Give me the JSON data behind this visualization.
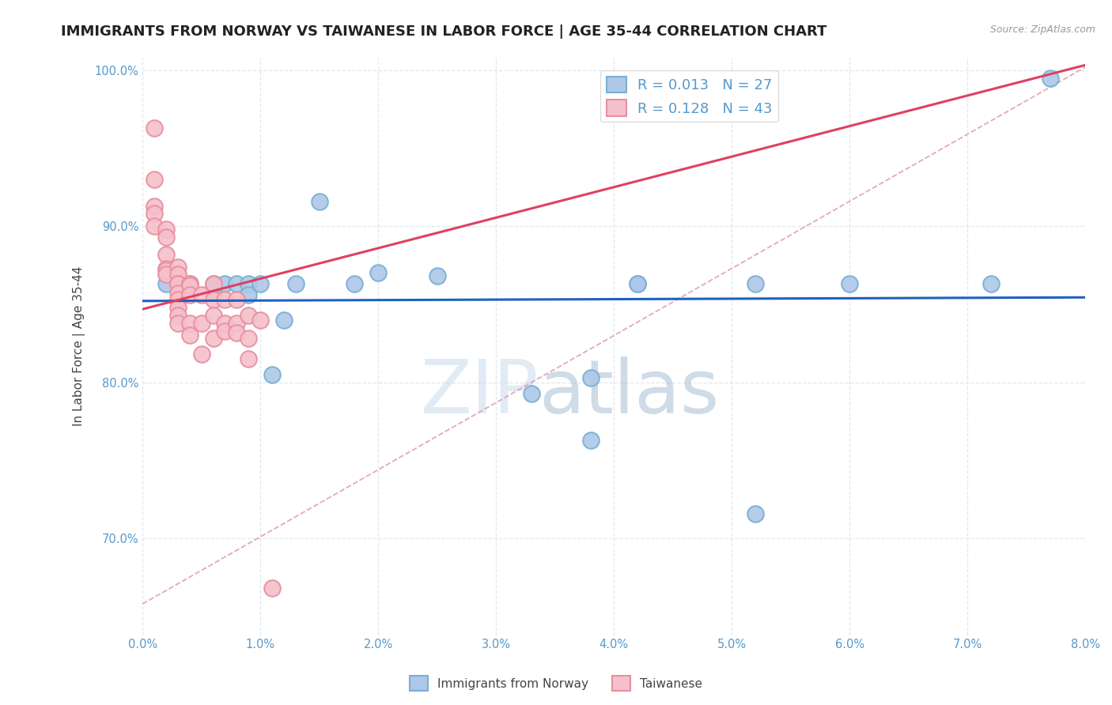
{
  "title": "IMMIGRANTS FROM NORWAY VS TAIWANESE IN LABOR FORCE | AGE 35-44 CORRELATION CHART",
  "source": "Source: ZipAtlas.com",
  "xlabel_norway": "Immigrants from Norway",
  "xlabel_taiwanese": "Taiwanese",
  "ylabel": "In Labor Force | Age 35-44",
  "xlim": [
    0.0,
    0.08
  ],
  "ylim": [
    0.638,
    1.008
  ],
  "xticks": [
    0.0,
    0.01,
    0.02,
    0.03,
    0.04,
    0.05,
    0.06,
    0.07,
    0.08
  ],
  "xtick_labels": [
    "0.0%",
    "1.0%",
    "2.0%",
    "3.0%",
    "4.0%",
    "5.0%",
    "6.0%",
    "7.0%",
    "8.0%"
  ],
  "yticks": [
    0.7,
    0.8,
    0.9,
    1.0
  ],
  "ytick_labels": [
    "70.0%",
    "80.0%",
    "90.0%",
    "100.0%"
  ],
  "norway_R": 0.013,
  "norway_N": 27,
  "taiwanese_R": 0.128,
  "taiwanese_N": 43,
  "norway_color": "#7bafd4",
  "norwegian_fill": "#adc8e8",
  "taiwanese_color": "#e88fa0",
  "taiwanese_fill": "#f5c0ca",
  "trend_blue_color": "#2060c0",
  "trend_pink_color": "#e04060",
  "dashed_line_color": "#e0a0b0",
  "norway_points_x": [
    0.002,
    0.004,
    0.006,
    0.006,
    0.006,
    0.007,
    0.008,
    0.009,
    0.009,
    0.01,
    0.011,
    0.012,
    0.013,
    0.015,
    0.018,
    0.02,
    0.025,
    0.033,
    0.038,
    0.038,
    0.042,
    0.042,
    0.052,
    0.052,
    0.06,
    0.072,
    0.077
  ],
  "norway_points_y": [
    0.863,
    0.863,
    0.863,
    0.862,
    0.858,
    0.863,
    0.863,
    0.863,
    0.856,
    0.863,
    0.805,
    0.84,
    0.863,
    0.916,
    0.863,
    0.87,
    0.868,
    0.793,
    0.803,
    0.763,
    0.863,
    0.863,
    0.716,
    0.863,
    0.863,
    0.863,
    0.995
  ],
  "taiwanese_points_x": [
    0.001,
    0.001,
    0.001,
    0.001,
    0.001,
    0.002,
    0.002,
    0.002,
    0.002,
    0.002,
    0.002,
    0.003,
    0.003,
    0.003,
    0.003,
    0.003,
    0.003,
    0.003,
    0.003,
    0.003,
    0.004,
    0.004,
    0.004,
    0.004,
    0.004,
    0.005,
    0.005,
    0.005,
    0.006,
    0.006,
    0.006,
    0.006,
    0.007,
    0.007,
    0.007,
    0.008,
    0.008,
    0.008,
    0.009,
    0.009,
    0.009,
    0.01,
    0.011
  ],
  "taiwanese_points_y": [
    0.963,
    0.93,
    0.913,
    0.908,
    0.9,
    0.898,
    0.893,
    0.882,
    0.873,
    0.872,
    0.869,
    0.874,
    0.869,
    0.863,
    0.863,
    0.857,
    0.853,
    0.848,
    0.843,
    0.838,
    0.838,
    0.83,
    0.863,
    0.862,
    0.856,
    0.856,
    0.838,
    0.818,
    0.863,
    0.853,
    0.843,
    0.828,
    0.853,
    0.838,
    0.833,
    0.853,
    0.838,
    0.832,
    0.843,
    0.828,
    0.815,
    0.84,
    0.668
  ],
  "watermark_zip": "ZIP",
  "watermark_atlas": "atlas",
  "background_color": "#ffffff",
  "grid_color": "#dde8f0",
  "title_fontsize": 13,
  "axis_label_fontsize": 11,
  "tick_fontsize": 10.5,
  "tick_color": "#5599cc",
  "legend_fontsize": 13
}
